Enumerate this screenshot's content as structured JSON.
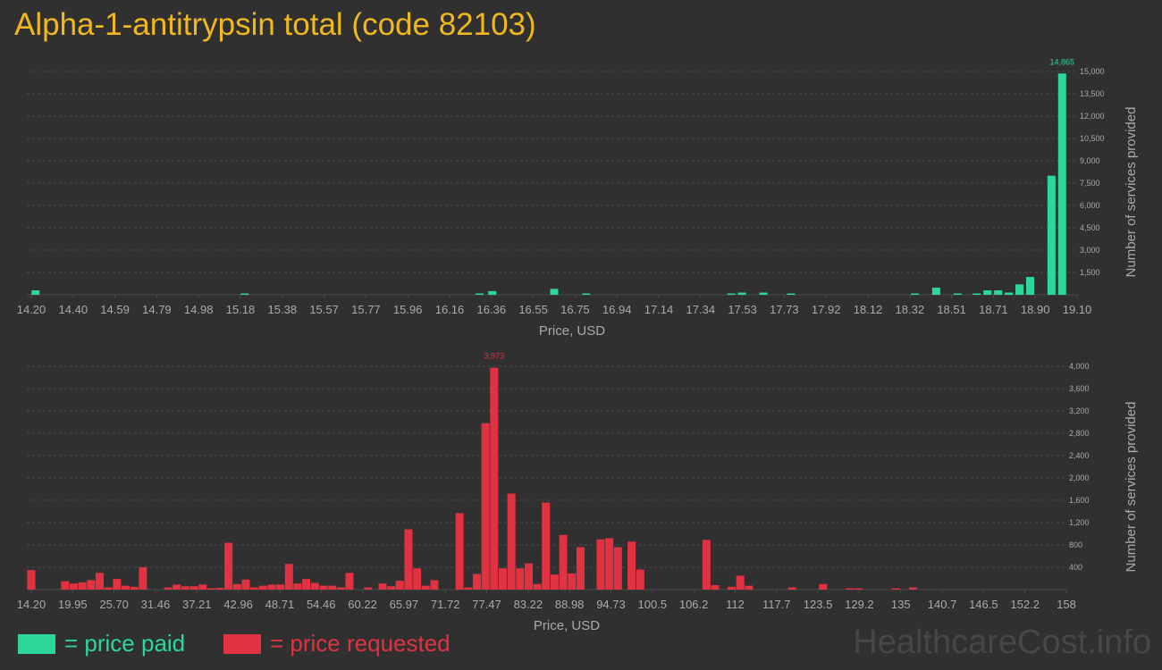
{
  "title": "Alpha-1-antitrypsin total (code 82103)",
  "colors": {
    "paid": "#2bd89a",
    "requested": "#e03240",
    "title": "#f0b81d",
    "background": "#303030"
  },
  "legend": {
    "paid": "= price paid",
    "requested": "= price requested"
  },
  "watermark": "HealthcareCost.info",
  "chart_data": [
    {
      "type": "bar",
      "series": [
        {
          "name": "price paid",
          "color": "#2bd89a"
        }
      ],
      "xlabel": "Price, USD",
      "ylabel": "Number of services provided",
      "xlim": [
        14.2,
        19.1
      ],
      "ylim": [
        0,
        15000
      ],
      "xticks": [
        "14.20",
        "14.40",
        "14.59",
        "14.79",
        "14.98",
        "15.18",
        "15.38",
        "15.57",
        "15.77",
        "15.96",
        "16.16",
        "16.36",
        "16.55",
        "16.75",
        "16.94",
        "17.14",
        "17.34",
        "17.53",
        "17.73",
        "17.92",
        "18.12",
        "18.32",
        "18.51",
        "18.71",
        "18.90",
        "19.10"
      ],
      "yticks": [
        "1,500",
        "3,000",
        "4,500",
        "6,000",
        "7,500",
        "9,000",
        "10,500",
        "12,000",
        "13,500",
        "15,000"
      ],
      "ytick_values": [
        1500,
        3000,
        4500,
        6000,
        7500,
        9000,
        10500,
        12000,
        13500,
        15000
      ],
      "peak_label": "14,865",
      "grid": true,
      "points": [
        {
          "x": 14.22,
          "y": 300
        },
        {
          "x": 15.2,
          "y": 40
        },
        {
          "x": 16.3,
          "y": 30
        },
        {
          "x": 16.36,
          "y": 250
        },
        {
          "x": 16.65,
          "y": 400
        },
        {
          "x": 16.8,
          "y": 40
        },
        {
          "x": 17.48,
          "y": 40
        },
        {
          "x": 17.53,
          "y": 150
        },
        {
          "x": 17.63,
          "y": 150
        },
        {
          "x": 17.76,
          "y": 20
        },
        {
          "x": 18.34,
          "y": 30
        },
        {
          "x": 18.44,
          "y": 480
        },
        {
          "x": 18.54,
          "y": 40
        },
        {
          "x": 18.63,
          "y": 60
        },
        {
          "x": 18.68,
          "y": 300
        },
        {
          "x": 18.73,
          "y": 300
        },
        {
          "x": 18.78,
          "y": 150
        },
        {
          "x": 18.83,
          "y": 700
        },
        {
          "x": 18.88,
          "y": 1200
        },
        {
          "x": 18.98,
          "y": 8000
        },
        {
          "x": 19.03,
          "y": 14865
        }
      ]
    },
    {
      "type": "bar",
      "series": [
        {
          "name": "price requested",
          "color": "#e03240"
        }
      ],
      "xlabel": "Price, USD",
      "ylabel": "Number of services provided",
      "xlim": [
        14.2,
        158
      ],
      "ylim": [
        0,
        4000
      ],
      "xticks": [
        "14.20",
        "19.95",
        "25.70",
        "31.46",
        "37.21",
        "42.96",
        "48.71",
        "54.46",
        "60.22",
        "65.97",
        "71.72",
        "77.47",
        "83.22",
        "88.98",
        "94.73",
        "100.5",
        "106.2",
        "112",
        "117.7",
        "123.5",
        "129.2",
        "135",
        "140.7",
        "146.5",
        "152.2",
        "158"
      ],
      "yticks": [
        "400",
        "800",
        "1,200",
        "1,600",
        "2,000",
        "2,400",
        "2,800",
        "3,200",
        "3,600",
        "4,000"
      ],
      "ytick_values": [
        400,
        800,
        1200,
        1600,
        2000,
        2400,
        2800,
        3200,
        3600,
        4000
      ],
      "peak_label": "3,973",
      "grid": true,
      "points": [
        {
          "x": 14.2,
          "y": 350
        },
        {
          "x": 17.5,
          "y": 0
        },
        {
          "x": 18.9,
          "y": 150
        },
        {
          "x": 20.1,
          "y": 110
        },
        {
          "x": 21.3,
          "y": 130
        },
        {
          "x": 22.5,
          "y": 170
        },
        {
          "x": 23.7,
          "y": 300
        },
        {
          "x": 24.9,
          "y": 40
        },
        {
          "x": 26.1,
          "y": 190
        },
        {
          "x": 27.3,
          "y": 70
        },
        {
          "x": 28.5,
          "y": 50
        },
        {
          "x": 29.7,
          "y": 400
        },
        {
          "x": 33.2,
          "y": 40
        },
        {
          "x": 34.4,
          "y": 90
        },
        {
          "x": 35.6,
          "y": 60
        },
        {
          "x": 36.8,
          "y": 60
        },
        {
          "x": 38.0,
          "y": 90
        },
        {
          "x": 39.2,
          "y": 20
        },
        {
          "x": 40.4,
          "y": 30
        },
        {
          "x": 41.6,
          "y": 840
        },
        {
          "x": 42.8,
          "y": 100
        },
        {
          "x": 44.0,
          "y": 180
        },
        {
          "x": 45.2,
          "y": 40
        },
        {
          "x": 46.4,
          "y": 70
        },
        {
          "x": 47.6,
          "y": 90
        },
        {
          "x": 48.8,
          "y": 90
        },
        {
          "x": 50.0,
          "y": 460
        },
        {
          "x": 51.2,
          "y": 110
        },
        {
          "x": 52.4,
          "y": 190
        },
        {
          "x": 53.6,
          "y": 120
        },
        {
          "x": 54.8,
          "y": 70
        },
        {
          "x": 56.0,
          "y": 70
        },
        {
          "x": 57.2,
          "y": 40
        },
        {
          "x": 58.4,
          "y": 300
        },
        {
          "x": 61.0,
          "y": 40
        },
        {
          "x": 63.0,
          "y": 110
        },
        {
          "x": 64.2,
          "y": 60
        },
        {
          "x": 65.4,
          "y": 160
        },
        {
          "x": 66.6,
          "y": 1080
        },
        {
          "x": 67.8,
          "y": 380
        },
        {
          "x": 69.0,
          "y": 70
        },
        {
          "x": 70.2,
          "y": 170
        },
        {
          "x": 73.7,
          "y": 1370
        },
        {
          "x": 74.9,
          "y": 40
        },
        {
          "x": 76.1,
          "y": 280
        },
        {
          "x": 77.3,
          "y": 2980
        },
        {
          "x": 78.5,
          "y": 3973
        },
        {
          "x": 79.7,
          "y": 380
        },
        {
          "x": 80.9,
          "y": 1720
        },
        {
          "x": 82.1,
          "y": 380
        },
        {
          "x": 83.3,
          "y": 470
        },
        {
          "x": 84.5,
          "y": 100
        },
        {
          "x": 85.7,
          "y": 1560
        },
        {
          "x": 86.9,
          "y": 270
        },
        {
          "x": 88.1,
          "y": 980
        },
        {
          "x": 89.3,
          "y": 290
        },
        {
          "x": 90.5,
          "y": 760
        },
        {
          "x": 93.3,
          "y": 900
        },
        {
          "x": 94.5,
          "y": 920
        },
        {
          "x": 95.7,
          "y": 760
        },
        {
          "x": 97.6,
          "y": 860
        },
        {
          "x": 98.8,
          "y": 360
        },
        {
          "x": 108.0,
          "y": 890
        },
        {
          "x": 109.2,
          "y": 80
        },
        {
          "x": 111.5,
          "y": 50
        },
        {
          "x": 112.7,
          "y": 250
        },
        {
          "x": 113.9,
          "y": 70
        },
        {
          "x": 119.9,
          "y": 40
        },
        {
          "x": 124.2,
          "y": 100
        },
        {
          "x": 127.9,
          "y": 20
        },
        {
          "x": 129.1,
          "y": 20
        },
        {
          "x": 134.3,
          "y": 20
        },
        {
          "x": 136.7,
          "y": 40
        }
      ]
    }
  ]
}
